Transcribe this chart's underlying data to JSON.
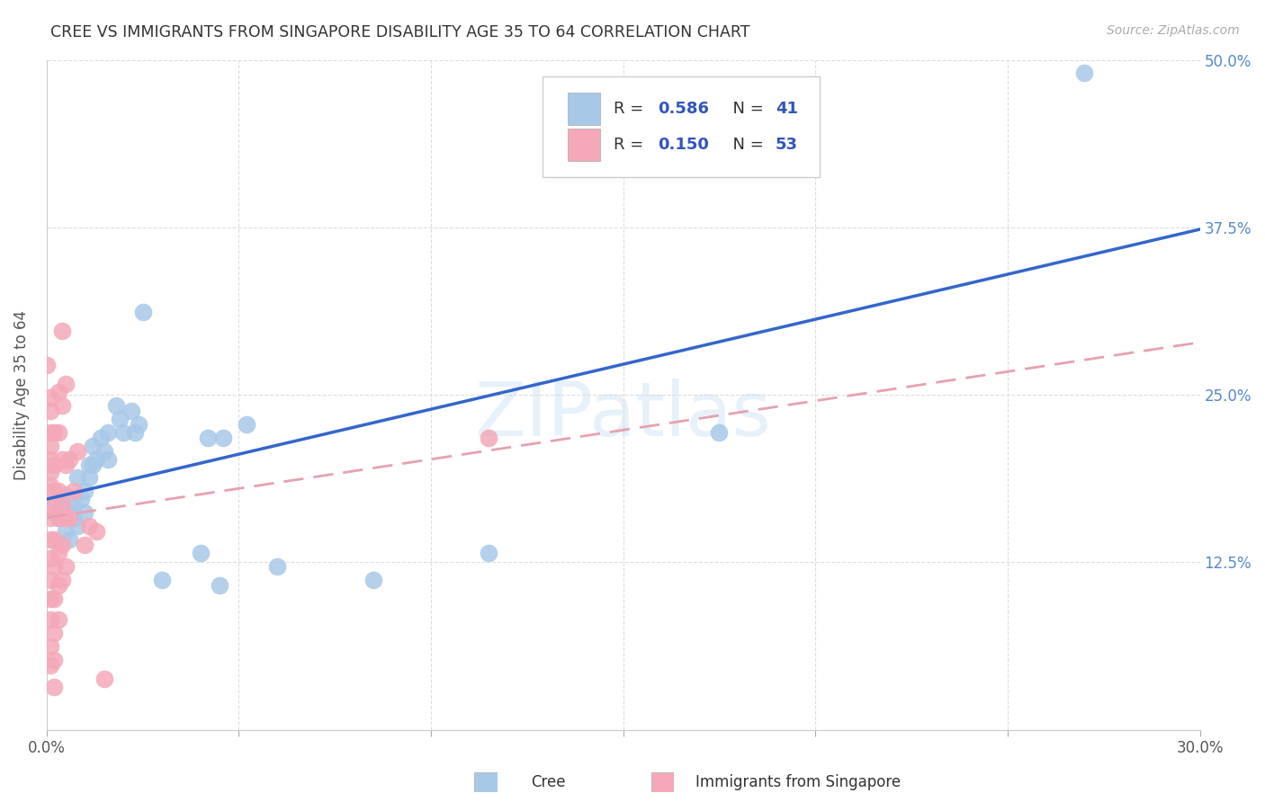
{
  "title": "CREE VS IMMIGRANTS FROM SINGAPORE DISABILITY AGE 35 TO 64 CORRELATION CHART",
  "source": "Source: ZipAtlas.com",
  "xlabel_label": "Cree",
  "xlabel2_label": "Immigrants from Singapore",
  "ylabel": "Disability Age 35 to 64",
  "watermark": "ZIPatlas",
  "xlim": [
    0.0,
    0.3
  ],
  "ylim": [
    0.0,
    0.5
  ],
  "xticks": [
    0.0,
    0.05,
    0.1,
    0.15,
    0.2,
    0.25,
    0.3
  ],
  "xticklabels": [
    "0.0%",
    "",
    "",
    "",
    "",
    "",
    "30.0%"
  ],
  "yticks": [
    0.0,
    0.125,
    0.25,
    0.375,
    0.5
  ],
  "yticklabels": [
    "",
    "12.5%",
    "25.0%",
    "37.5%",
    "50.0%"
  ],
  "cree_color": "#a8c8e8",
  "singapore_color": "#f4a8b8",
  "cree_line_color": "#3366cc",
  "singapore_line_color": "#e8a0b0",
  "legend_text_color": "#3355bb",
  "ytick_color": "#5588cc",
  "xtick_color": "#555555",
  "R_cree": "0.586",
  "N_cree": "41",
  "R_singapore": "0.150",
  "N_singapore": "53",
  "cree_scatter": [
    [
      0.002,
      0.172
    ],
    [
      0.003,
      0.158
    ],
    [
      0.004,
      0.168
    ],
    [
      0.005,
      0.175
    ],
    [
      0.005,
      0.148
    ],
    [
      0.006,
      0.162
    ],
    [
      0.006,
      0.142
    ],
    [
      0.007,
      0.158
    ],
    [
      0.007,
      0.168
    ],
    [
      0.008,
      0.188
    ],
    [
      0.008,
      0.152
    ],
    [
      0.009,
      0.172
    ],
    [
      0.01,
      0.178
    ],
    [
      0.01,
      0.162
    ],
    [
      0.011,
      0.198
    ],
    [
      0.011,
      0.188
    ],
    [
      0.012,
      0.198
    ],
    [
      0.012,
      0.212
    ],
    [
      0.013,
      0.202
    ],
    [
      0.014,
      0.218
    ],
    [
      0.015,
      0.208
    ],
    [
      0.016,
      0.222
    ],
    [
      0.016,
      0.202
    ],
    [
      0.018,
      0.242
    ],
    [
      0.019,
      0.232
    ],
    [
      0.02,
      0.222
    ],
    [
      0.022,
      0.238
    ],
    [
      0.023,
      0.222
    ],
    [
      0.024,
      0.228
    ],
    [
      0.025,
      0.312
    ],
    [
      0.03,
      0.112
    ],
    [
      0.04,
      0.132
    ],
    [
      0.042,
      0.218
    ],
    [
      0.045,
      0.108
    ],
    [
      0.046,
      0.218
    ],
    [
      0.052,
      0.228
    ],
    [
      0.06,
      0.122
    ],
    [
      0.085,
      0.112
    ],
    [
      0.115,
      0.132
    ],
    [
      0.175,
      0.222
    ],
    [
      0.27,
      0.49
    ]
  ],
  "singapore_scatter": [
    [
      0.0,
      0.272
    ],
    [
      0.001,
      0.248
    ],
    [
      0.001,
      0.238
    ],
    [
      0.001,
      0.222
    ],
    [
      0.001,
      0.212
    ],
    [
      0.001,
      0.202
    ],
    [
      0.001,
      0.192
    ],
    [
      0.001,
      0.182
    ],
    [
      0.001,
      0.168
    ],
    [
      0.001,
      0.158
    ],
    [
      0.001,
      0.142
    ],
    [
      0.001,
      0.128
    ],
    [
      0.001,
      0.112
    ],
    [
      0.001,
      0.098
    ],
    [
      0.001,
      0.082
    ],
    [
      0.001,
      0.062
    ],
    [
      0.001,
      0.048
    ],
    [
      0.002,
      0.222
    ],
    [
      0.002,
      0.198
    ],
    [
      0.002,
      0.178
    ],
    [
      0.002,
      0.162
    ],
    [
      0.002,
      0.142
    ],
    [
      0.002,
      0.122
    ],
    [
      0.002,
      0.098
    ],
    [
      0.002,
      0.072
    ],
    [
      0.002,
      0.052
    ],
    [
      0.002,
      0.032
    ],
    [
      0.003,
      0.252
    ],
    [
      0.003,
      0.222
    ],
    [
      0.003,
      0.178
    ],
    [
      0.003,
      0.158
    ],
    [
      0.003,
      0.132
    ],
    [
      0.003,
      0.108
    ],
    [
      0.003,
      0.082
    ],
    [
      0.004,
      0.298
    ],
    [
      0.004,
      0.242
    ],
    [
      0.004,
      0.202
    ],
    [
      0.004,
      0.168
    ],
    [
      0.004,
      0.138
    ],
    [
      0.004,
      0.112
    ],
    [
      0.005,
      0.258
    ],
    [
      0.005,
      0.198
    ],
    [
      0.005,
      0.158
    ],
    [
      0.005,
      0.122
    ],
    [
      0.006,
      0.202
    ],
    [
      0.006,
      0.158
    ],
    [
      0.007,
      0.178
    ],
    [
      0.008,
      0.208
    ],
    [
      0.01,
      0.138
    ],
    [
      0.011,
      0.152
    ],
    [
      0.013,
      0.148
    ],
    [
      0.015,
      0.038
    ],
    [
      0.115,
      0.218
    ]
  ]
}
